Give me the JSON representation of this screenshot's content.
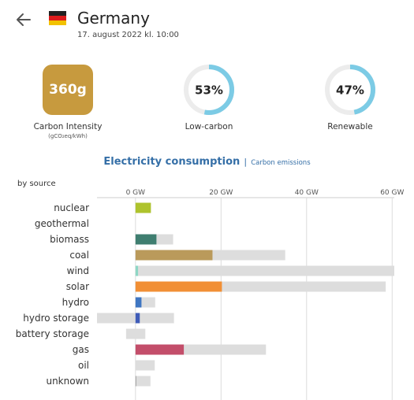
{
  "header": {
    "back_icon": "arrow-left-icon",
    "flag_colors": [
      "#222222",
      "#dd1c1c",
      "#f2c200"
    ],
    "country": "Germany",
    "timestamp": "17. august 2022 kl. 10:00"
  },
  "kpis": {
    "carbon_intensity": {
      "value": "360g",
      "label": "Carbon Intensity",
      "unit": "(gCO₂eq/kWh)",
      "color": "#c79a3e"
    },
    "low_carbon": {
      "value": "53%",
      "fraction": 0.53,
      "label": "Low-carbon"
    },
    "renewable": {
      "value": "47%",
      "fraction": 0.47,
      "label": "Renewable"
    },
    "gauge_colors": {
      "fill": "#7ccbe5",
      "track": "#ececec"
    }
  },
  "tabs": {
    "active": "Electricity consumption",
    "separator": "|",
    "inactive": "Carbon emissions"
  },
  "chart_data": {
    "type": "bar",
    "section_label": "by source",
    "xticks": [
      0,
      20,
      40,
      60
    ],
    "tick_labels": [
      "0 GW",
      "20 GW",
      "40 GW",
      "60 GW"
    ],
    "xlim": [
      -9,
      60.5
    ],
    "categories": [
      "nuclear",
      "geothermal",
      "biomass",
      "coal",
      "wind",
      "solar",
      "hydro",
      "hydro storage",
      "battery storage",
      "gas",
      "oil",
      "unknown"
    ],
    "production": [
      3.6,
      0,
      4.9,
      18.0,
      0.6,
      20.2,
      1.4,
      1.0,
      0,
      11.3,
      0,
      0.2
    ],
    "capacity_range": [
      [
        0,
        3.6
      ],
      [
        0,
        0
      ],
      [
        0,
        8.8
      ],
      [
        0,
        35.0
      ],
      [
        0,
        60.5
      ],
      [
        0,
        58.5
      ],
      [
        0,
        4.6
      ],
      [
        -9.0,
        9.0
      ],
      [
        -2.2,
        2.3
      ],
      [
        0,
        30.5
      ],
      [
        0,
        4.5
      ],
      [
        0,
        3.5
      ]
    ],
    "colors": [
      "#aec32d",
      "#a34f3f",
      "#3f7e70",
      "#ba9a5b",
      "#8ed7c5",
      "#f18f35",
      "#3f76c2",
      "#3f5cb8",
      "#bf6bbb",
      "#c34e6a",
      "#877f76",
      "#a8a8a8"
    ],
    "capacity_color": "#dddddd",
    "grid": true
  }
}
